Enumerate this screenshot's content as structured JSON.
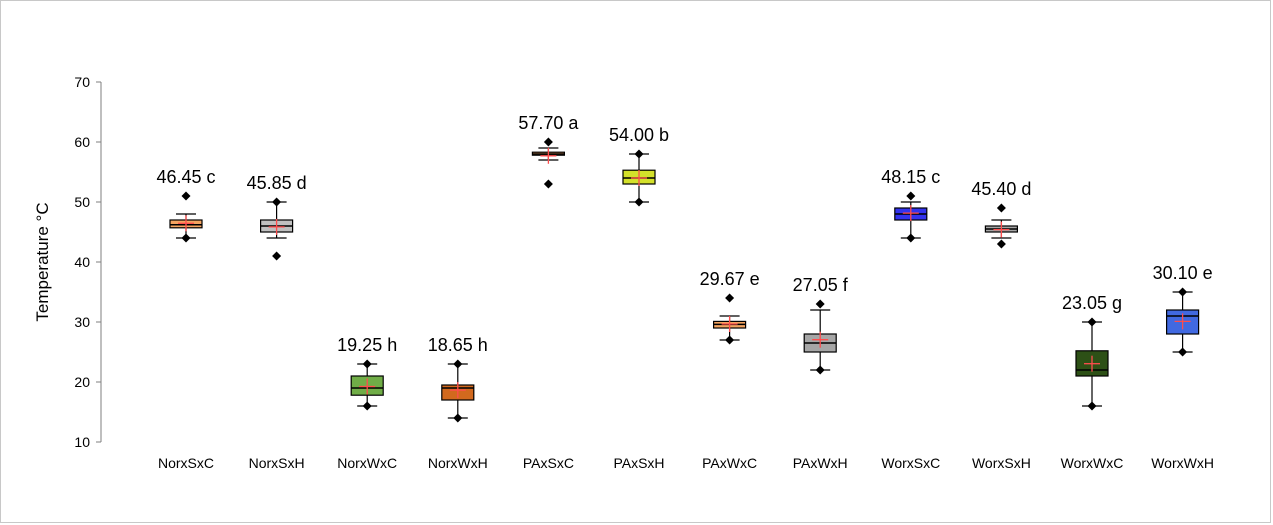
{
  "chart_data": {
    "type": "box",
    "ylabel": "Temperature °C",
    "xlabel": "",
    "ylim": [
      10,
      70
    ],
    "yticks": [
      10,
      20,
      30,
      40,
      50,
      60,
      70
    ],
    "grid": false,
    "categories": [
      "NorxSxC",
      "NorxSxH",
      "NorxWxC",
      "NorxWxH",
      "PAxSxC",
      "PAxSxH",
      "PAxWxC",
      "PAxWxH",
      "WorxSxC",
      "WorxSxH",
      "WorxWxC",
      "WorxWxH"
    ],
    "boxes": [
      {
        "category": "NorxSxC",
        "min": 44,
        "q1": 45.7,
        "median": 46.2,
        "q3": 47,
        "max": 48,
        "mean": 46.45,
        "outliers": [
          51,
          44
        ],
        "annotation": "46.45 c",
        "color": "#f4a460"
      },
      {
        "category": "NorxSxH",
        "min": 44,
        "q1": 45,
        "median": 46,
        "q3": 47,
        "max": 50,
        "mean": 45.85,
        "outliers": [
          50,
          41
        ],
        "annotation": "45.85 d",
        "color": "#c0c0c0"
      },
      {
        "category": "NorxWxC",
        "min": 16,
        "q1": 17.8,
        "median": 19,
        "q3": 21,
        "max": 23,
        "mean": 19.25,
        "outliers": [
          23,
          16
        ],
        "annotation": "19.25 h",
        "color": "#70ad47"
      },
      {
        "category": "NorxWxH",
        "min": 14,
        "q1": 17,
        "median": 19,
        "q3": 19.5,
        "max": 23,
        "mean": 18.65,
        "outliers": [
          23,
          14
        ],
        "annotation": "18.65 h",
        "color": "#d2691e"
      },
      {
        "category": "PAxSxC",
        "min": 57,
        "q1": 57.8,
        "median": 58,
        "q3": 58.3,
        "max": 59,
        "mean": 57.7,
        "outliers": [
          60,
          53
        ],
        "annotation": "57.70 a",
        "color": "#f4a460"
      },
      {
        "category": "PAxSxH",
        "min": 50,
        "q1": 53,
        "median": 54,
        "q3": 55.3,
        "max": 58,
        "mean": 54.0,
        "outliers": [
          58,
          50
        ],
        "annotation": "54.00 b",
        "color": "#d4e12b"
      },
      {
        "category": "PAxWxC",
        "min": 27,
        "q1": 29,
        "median": 29.6,
        "q3": 30.1,
        "max": 31,
        "mean": 29.67,
        "outliers": [
          34,
          27
        ],
        "annotation": "29.67 e",
        "color": "#f4a460"
      },
      {
        "category": "PAxWxH",
        "min": 22,
        "q1": 25,
        "median": 26.5,
        "q3": 28,
        "max": 32,
        "mean": 27.05,
        "outliers": [
          33,
          22
        ],
        "annotation": "27.05 f",
        "color": "#a6a6a6"
      },
      {
        "category": "WorxSxC",
        "min": 44,
        "q1": 47,
        "median": 48,
        "q3": 49,
        "max": 50,
        "mean": 48.15,
        "outliers": [
          51,
          44
        ],
        "annotation": "48.15 c",
        "color": "#3333ee"
      },
      {
        "category": "WorxSxH",
        "min": 44,
        "q1": 45,
        "median": 45.5,
        "q3": 46,
        "max": 47,
        "mean": 45.4,
        "outliers": [
          49,
          43
        ],
        "annotation": "45.40 d",
        "color": "#a6a6a6"
      },
      {
        "category": "WorxWxC",
        "min": 16,
        "q1": 21,
        "median": 22,
        "q3": 25.2,
        "max": 30,
        "mean": 23.05,
        "outliers": [
          30,
          16
        ],
        "annotation": "23.05 g",
        "color": "#2d5016"
      },
      {
        "category": "WorxWxH",
        "min": 25,
        "q1": 28,
        "median": 31,
        "q3": 32,
        "max": 35,
        "mean": 30.1,
        "outliers": [
          35,
          25
        ],
        "annotation": "30.10 e",
        "color": "#4169e1"
      }
    ],
    "mean_marker_color": "#ff4d4d",
    "outlier_marker": "diamond"
  }
}
